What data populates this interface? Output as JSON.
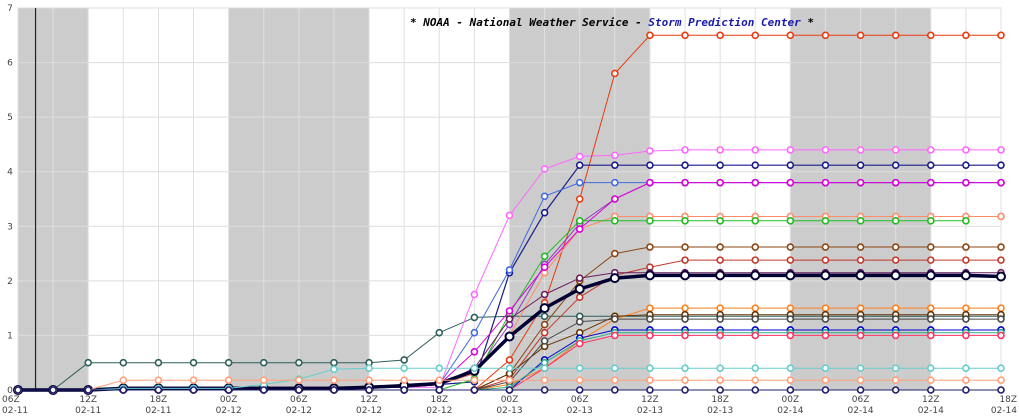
{
  "chart_data": {
    "type": "line",
    "title_parts": {
      "prefix": "* NOAA - National Weather Service - ",
      "highlight": "Storm Prediction Center",
      "suffix": " *"
    },
    "title_color": "#000000",
    "highlight_color": "#1a1aa8",
    "xlabel": "",
    "ylabel": "",
    "ylim": [
      0,
      7
    ],
    "yticks": [
      0,
      1,
      2,
      3,
      4,
      5,
      6,
      7
    ],
    "xlim": [
      0,
      3.5
    ],
    "xticks": [
      {
        "t": 0.0,
        "top": "06Z",
        "bottom": "02-11"
      },
      {
        "t": 0.25,
        "top": "12Z",
        "bottom": "02-11"
      },
      {
        "t": 0.5,
        "top": "18Z",
        "bottom": "02-11"
      },
      {
        "t": 0.75,
        "top": "00Z",
        "bottom": "02-12"
      },
      {
        "t": 1.0,
        "top": "06Z",
        "bottom": "02-12"
      },
      {
        "t": 1.25,
        "top": "12Z",
        "bottom": "02-12"
      },
      {
        "t": 1.5,
        "top": "18Z",
        "bottom": "02-12"
      },
      {
        "t": 1.75,
        "top": "00Z",
        "bottom": "02-13"
      },
      {
        "t": 2.0,
        "top": "06Z",
        "bottom": "02-13"
      },
      {
        "t": 2.25,
        "top": "12Z",
        "bottom": "02-13"
      },
      {
        "t": 2.5,
        "top": "18Z",
        "bottom": "02-13"
      },
      {
        "t": 2.75,
        "top": "00Z",
        "bottom": "02-14"
      },
      {
        "t": 3.0,
        "top": "06Z",
        "bottom": "02-14"
      },
      {
        "t": 3.25,
        "top": "12Z",
        "bottom": "02-14"
      },
      {
        "t": 3.5,
        "top": "18Z",
        "bottom": "02-14"
      }
    ],
    "shaded_periods": [
      [
        0,
        0.25
      ],
      [
        0.75,
        1.25
      ],
      [
        1.75,
        2.25
      ],
      [
        2.75,
        3.25
      ]
    ],
    "vertical_marker": 0.0625,
    "grid": true,
    "step": 0.125,
    "series": [
      {
        "color": "#2e5e5a",
        "width": 1,
        "values": [
          0,
          0,
          0.5,
          0.5,
          0.5,
          0.5,
          0.5,
          0.5,
          0.5,
          0.5,
          0.5,
          0.55,
          1.05,
          1.33,
          1.35,
          1.35,
          1.35,
          1.35,
          1.35,
          1.35,
          1.35,
          1.35,
          1.35,
          1.35,
          1.35,
          1.35,
          1.35,
          1.35,
          1.35
        ]
      },
      {
        "color": "#ff66ff",
        "width": 1,
        "values": [
          0,
          0,
          0,
          0.05,
          0.05,
          0.05,
          0.05,
          0.05,
          0.05,
          0.05,
          0.05,
          0.05,
          0.05,
          1.75,
          3.2,
          4.05,
          4.28,
          4.3,
          4.38,
          4.4,
          4.4,
          4.4,
          4.4,
          4.4,
          4.4,
          4.4,
          4.4,
          4.4,
          4.4
        ]
      },
      {
        "color": "#e83a10",
        "width": 1,
        "values": [
          0,
          0,
          0,
          0,
          0,
          0,
          0,
          0,
          0,
          0,
          0,
          0,
          0,
          0,
          0.55,
          1.6,
          3.5,
          5.8,
          6.5,
          6.5,
          6.5,
          6.5,
          6.5,
          6.5,
          6.5,
          6.5,
          6.5,
          6.5,
          6.5
        ]
      },
      {
        "color": "#1a1a8a",
        "width": 1.2,
        "values": [
          0,
          0,
          0,
          0.05,
          0.05,
          0.05,
          0.05,
          0.05,
          0.05,
          0.05,
          0.05,
          0.05,
          0.1,
          0.15,
          2.15,
          3.25,
          4.12,
          4.12,
          4.12,
          4.12,
          4.12,
          4.12,
          4.12,
          4.12,
          4.12,
          4.12,
          4.12,
          4.12,
          4.12
        ]
      },
      {
        "color": "#4169e1",
        "width": 1,
        "values": [
          0,
          0,
          0,
          0.05,
          0.05,
          0.05,
          0.05,
          0.05,
          0.05,
          0.05,
          0.05,
          0.05,
          0.1,
          1.05,
          2.2,
          3.55,
          3.8,
          3.8,
          3.8,
          3.8,
          3.8,
          3.8,
          3.8,
          3.8,
          3.8,
          3.8,
          3.8,
          3.8,
          3.8
        ]
      },
      {
        "color": "#8b3dbb",
        "width": 1,
        "values": [
          0,
          0,
          0,
          0.05,
          0.05,
          0.05,
          0.05,
          0.05,
          0.05,
          0.05,
          0.05,
          0.05,
          0.1,
          0.3,
          1.2,
          2.3,
          3.05,
          3.5,
          3.8,
          3.8,
          3.8,
          3.8,
          3.8,
          3.8,
          3.8,
          3.8,
          3.8,
          3.8,
          3.8
        ]
      },
      {
        "color": "#ff8c69",
        "width": 1,
        "values": [
          0,
          0,
          0,
          0.05,
          0.05,
          0.05,
          0.05,
          0.05,
          0.05,
          0.05,
          0.05,
          0.05,
          0.1,
          0.3,
          1.0,
          2.15,
          2.95,
          3.18,
          3.18,
          3.18,
          3.18,
          3.18,
          3.18,
          3.18,
          3.18,
          3.18,
          3.18,
          3.18,
          3.18
        ]
      },
      {
        "color": "#22bb22",
        "width": 1,
        "values": [
          0,
          0,
          0,
          0,
          0,
          0,
          0,
          0,
          0,
          0,
          0,
          0,
          0,
          0.2,
          1.4,
          2.45,
          3.1,
          3.1,
          3.1,
          3.1,
          3.1,
          3.1,
          3.1,
          3.1,
          3.1,
          3.1,
          3.1,
          3.1,
          null
        ]
      },
      {
        "color": "#8b4513",
        "width": 1,
        "values": [
          0,
          0,
          0,
          0,
          0,
          0,
          0,
          0,
          0,
          0,
          0,
          0,
          0,
          0,
          0.3,
          1.2,
          2.0,
          2.5,
          2.62,
          2.62,
          2.62,
          2.62,
          2.62,
          2.62,
          2.62,
          2.62,
          2.62,
          2.62,
          2.62
        ]
      },
      {
        "color": "#c0392b",
        "width": 1,
        "values": [
          0,
          0,
          0,
          0,
          0,
          0,
          0,
          0,
          0,
          0,
          0,
          0,
          0,
          0,
          0.2,
          1.05,
          1.7,
          2.1,
          2.25,
          2.38,
          2.38,
          2.38,
          2.38,
          2.38,
          2.38,
          2.38,
          2.38,
          2.38,
          2.38
        ]
      },
      {
        "color": "#dd00dd",
        "width": 1,
        "values": [
          0,
          0,
          0,
          0.05,
          0.05,
          0.05,
          0.05,
          0.05,
          0.05,
          0.05,
          0.05,
          0.05,
          0.1,
          0.7,
          1.45,
          2.25,
          2.95,
          3.5,
          3.8,
          3.8,
          3.8,
          3.8,
          3.8,
          3.8,
          3.8,
          3.8,
          3.8,
          3.8,
          3.8
        ]
      },
      {
        "color": "#6a1b5e",
        "width": 1,
        "values": [
          0,
          0,
          0,
          0.05,
          0.05,
          0.05,
          0.05,
          0.05,
          0.05,
          0.05,
          0.05,
          0.05,
          0.1,
          0.4,
          1.3,
          1.75,
          2.05,
          2.15,
          2.15,
          2.15,
          2.15,
          2.15,
          2.15,
          2.15,
          2.15,
          2.15,
          2.15,
          2.15,
          2.15
        ]
      },
      {
        "color": "#000033",
        "width": 3.5,
        "values": [
          0,
          0,
          0,
          0.03,
          0.03,
          0.03,
          0.03,
          0.03,
          0.03,
          0.03,
          0.05,
          0.08,
          0.12,
          0.35,
          0.98,
          1.5,
          1.85,
          2.05,
          2.1,
          2.1,
          2.1,
          2.1,
          2.1,
          2.1,
          2.1,
          2.1,
          2.1,
          2.1,
          2.08
        ]
      },
      {
        "color": "#ff7f1a",
        "width": 1,
        "values": [
          0,
          0,
          0,
          0,
          0,
          0,
          0,
          0,
          0,
          0,
          0,
          0,
          0,
          0,
          0.1,
          0.4,
          0.9,
          1.3,
          1.5,
          1.5,
          1.5,
          1.5,
          1.5,
          1.5,
          1.5,
          1.5,
          1.5,
          1.5,
          1.5
        ]
      },
      {
        "color": "#663300",
        "width": 1,
        "values": [
          0,
          0,
          0,
          0,
          0,
          0,
          0,
          0,
          0,
          0,
          0,
          0,
          0,
          0,
          0.3,
          0.8,
          1.05,
          1.35,
          1.38,
          1.38,
          1.38,
          1.38,
          1.38,
          1.38,
          1.38,
          1.38,
          1.38,
          1.38,
          1.38
        ]
      },
      {
        "color": "#4a4a4a",
        "width": 1,
        "values": [
          0,
          0,
          0,
          0,
          0,
          0,
          0,
          0,
          0,
          0,
          0,
          0,
          0,
          0,
          0.15,
          0.9,
          1.25,
          1.3,
          1.3,
          1.3,
          1.3,
          1.3,
          1.3,
          1.3,
          1.3,
          1.3,
          1.3,
          1.3,
          1.3
        ]
      },
      {
        "color": "#0000cc",
        "width": 1,
        "values": [
          0,
          0,
          0,
          0,
          0,
          0,
          0,
          0,
          0,
          0,
          0,
          0,
          0,
          0,
          0,
          0.55,
          0.95,
          1.1,
          1.1,
          1.1,
          1.1,
          1.1,
          1.1,
          1.1,
          1.1,
          1.1,
          1.1,
          1.1,
          1.1
        ]
      },
      {
        "color": "#2aaa8a",
        "width": 1,
        "values": [
          0,
          0,
          0,
          0,
          0,
          0,
          0,
          0,
          0,
          0,
          0,
          0,
          0,
          0,
          0.05,
          0.5,
          0.9,
          1.05,
          1.05,
          1.05,
          1.05,
          1.05,
          1.05,
          1.05,
          1.05,
          1.05,
          1.05,
          1.05,
          1.05
        ]
      },
      {
        "color": "#ff3366",
        "width": 1,
        "values": [
          0,
          0,
          0,
          0,
          0,
          0,
          0,
          0,
          0,
          0,
          0,
          0,
          0,
          0,
          0,
          0.4,
          0.85,
          1.0,
          1.0,
          1.0,
          1.0,
          1.0,
          1.0,
          1.0,
          1.0,
          1.0,
          1.0,
          1.0,
          1.0
        ]
      },
      {
        "color": "#66cccc",
        "width": 1,
        "values": [
          0,
          0,
          0,
          0.03,
          0.03,
          0.03,
          0.03,
          0.1,
          0.2,
          0.38,
          0.4,
          0.4,
          0.4,
          0.4,
          0.4,
          0.4,
          0.4,
          0.4,
          0.4,
          0.4,
          0.4,
          0.4,
          0.4,
          0.4,
          0.4,
          0.4,
          0.4,
          0.4,
          0.4
        ]
      },
      {
        "color": "#ffa07a",
        "width": 1,
        "values": [
          0,
          0,
          0,
          0.18,
          0.18,
          0.18,
          0.18,
          0.18,
          0.18,
          0.18,
          0.18,
          0.18,
          0.18,
          0.18,
          0.18,
          0.18,
          0.18,
          0.18,
          0.18,
          0.18,
          0.18,
          0.18,
          0.18,
          0.18,
          0.18,
          0.18,
          0.18,
          0.18,
          0.18
        ]
      },
      {
        "color": "#1e1e6e",
        "width": 1,
        "values": [
          0,
          0,
          0,
          0,
          0,
          0,
          0,
          0,
          0,
          0,
          0,
          0,
          0,
          0,
          0,
          0,
          0,
          0,
          0,
          0,
          0,
          0,
          0,
          0,
          0,
          0,
          0,
          0,
          0
        ]
      }
    ]
  }
}
